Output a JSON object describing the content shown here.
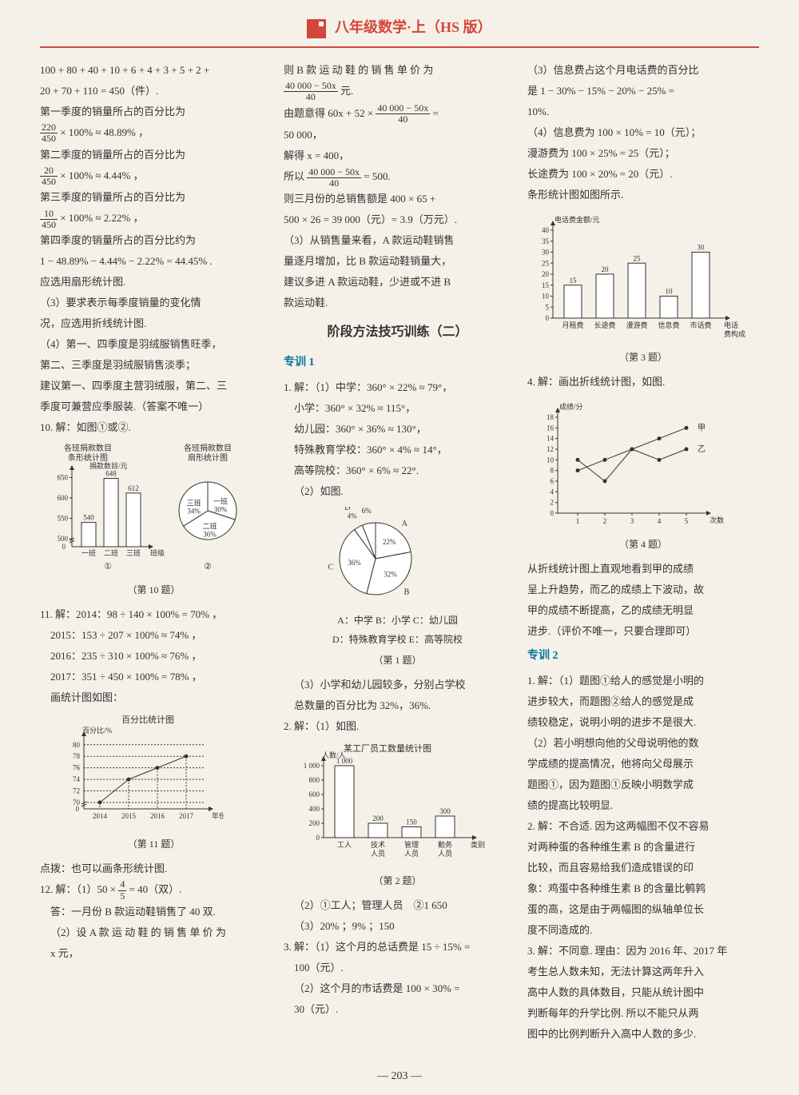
{
  "header": {
    "title": "八年级数学·上（HS 版）"
  },
  "page_number": "— 203 —",
  "col1": {
    "p1": "100 + 80 + 40 + 10 + 6 + 4 + 3 + 5 + 2 +",
    "p2": "20 + 70 + 110 = 450（件）.",
    "p3": "第一季度的销量所占的百分比为",
    "frac1": {
      "num": "220",
      "den": "450",
      "tail": " × 100% ≈ 48.89% ，"
    },
    "p4": "第二季度的销量所占的百分比为",
    "frac2": {
      "num": "20",
      "den": "450",
      "tail": " × 100% ≈ 4.44% ，"
    },
    "p5": "第三季度的销量所占的百分比为",
    "frac3": {
      "num": "10",
      "den": "450",
      "tail": " × 100% ≈ 2.22% ，"
    },
    "p6": "第四季度的销量所占的百分比约为",
    "p7": "1 − 48.89% − 4.44% − 2.22% = 44.45% .",
    "p8": "应选用扇形统计图.",
    "p9": "（3）要求表示每季度销量的变化情",
    "p10": "况，应选用折线统计图.",
    "p11": "（4）第一、四季度是羽绒服销售旺季，",
    "p12": "第二、三季度是羽绒服销售淡季；",
    "p13": "建议第一、四季度主营羽绒服，第二、三",
    "p14": "季度可兼营应季服装.（答案不唯一）",
    "q10": "10. 解：如图①或②.",
    "chart10_titles": {
      "left": "各班捐款数目\n条形统计图",
      "right": "各班捐款数目\n扇形统计图"
    },
    "bar10": {
      "type": "bar",
      "ylabel": "捐款数目/元",
      "categories": [
        "一班",
        "二班",
        "三班"
      ],
      "values": [
        540,
        648,
        612
      ],
      "value_labels": [
        "540",
        "648",
        "612"
      ],
      "yticks": [
        0,
        500,
        550,
        600,
        650
      ],
      "bar_color": "#ffffff",
      "border_color": "#333333",
      "xlabel": "班级",
      "sub": "①"
    },
    "pie10": {
      "type": "pie",
      "slices": [
        {
          "label": "一班",
          "pct": 30
        },
        {
          "label": "二班",
          "pct": 36
        },
        {
          "label": "三班",
          "pct": 34
        }
      ],
      "colors": [
        "#ffffff",
        "#ffffff",
        "#ffffff"
      ],
      "border": "#333333",
      "sub": "②"
    },
    "caption10": "（第 10 题）",
    "q11": "11. 解：2014：98 ÷ 140 × 100% = 70% ，",
    "q11b": "2015：153 ÷ 207 × 100% ≈ 74% ，",
    "q11c": "2016：235 ÷ 310 × 100% ≈ 76% ，",
    "q11d": "2017：351 ÷ 450 × 100% = 78% ，",
    "q11e": "画统计图如图：",
    "line11": {
      "type": "line",
      "title": "百分比统计图",
      "ylabel": "百分比/%",
      "xlabel": "年份",
      "x": [
        "2014",
        "2015",
        "2016",
        "2017"
      ],
      "y": [
        70,
        74,
        76,
        78
      ],
      "yticks": [
        0,
        70,
        72,
        74,
        76,
        78,
        80
      ],
      "line_color": "#333333",
      "marker": "circle"
    },
    "caption11": "（第 11 题）",
    "note11": "点拨：也可以画条形统计图.",
    "q12a": "12. 解：（1）50 × ",
    "q12frac": {
      "num": "4",
      "den": "5"
    },
    "q12a2": " = 40（双）.",
    "q12b": "答：一月份 B 款运动鞋销售了 40 双.",
    "q12c": "（2）设 A 款 运 动 鞋 的 销 售 单 价 为",
    "q12d": "x 元，"
  },
  "col2": {
    "p1": "则 B 款 运 动 鞋 的 销 售 单 价 为",
    "frac1": {
      "num": "40 000 − 50x",
      "den": "40",
      "tail": " 元."
    },
    "p2": "由题意得 60x + 52 × ",
    "frac2": {
      "num": "40 000 − 50x",
      "den": "40"
    },
    "p2b": " =",
    "p3": "50 000，",
    "p4": "解得 x = 400，",
    "p5": "所以 ",
    "frac3": {
      "num": "40 000 − 50x",
      "den": "40",
      "tail": " = 500."
    },
    "p6": "则三月份的总销售额是 400 × 65 +",
    "p7": "500 × 26 = 39 000（元）= 3.9（万元）.",
    "p8": "（3）从销售量来看，A 款运动鞋销售",
    "p9": "量逐月增加，比 B 款运动鞋销量大，",
    "p10": "建议多进 A 款运动鞋，少进或不进 B",
    "p11": "款运动鞋.",
    "section": "阶段方法技巧训练（二）",
    "zx1": "专训 1",
    "q1a": "1. 解：（1）中学：360° × 22% ≈ 79°，",
    "q1b": "小学：360° × 32% ≈ 115°，",
    "q1c": "幼儿园：360° × 36% ≈ 130°，",
    "q1d": "特殊教育学校：360° × 4% ≈ 14°，",
    "q1e": "高等院校：360° × 6% ≈ 22°.",
    "q1f": "（2）如图.",
    "pie1": {
      "type": "pie",
      "slices": [
        {
          "label": "A",
          "pct": 22
        },
        {
          "label": "B",
          "pct": 32
        },
        {
          "label": "C",
          "pct": 36
        },
        {
          "label": "D",
          "pct": 4
        },
        {
          "label": "E",
          "pct": 6
        }
      ],
      "annot": [
        "22%",
        "32%",
        "36%",
        "4%",
        "6%"
      ],
      "legend": "A：中学  B：小学  C：幼儿园",
      "legend2": "D：特殊教育学校  E：高等院校",
      "border": "#333333"
    },
    "caption1": "（第 1 题）",
    "q1g": "（3）小学和幼儿园较多，分别占学校",
    "q1h": "总数量的百分比为 32%，36%.",
    "q2a": "2. 解：（1）如图.",
    "bar2": {
      "type": "bar",
      "title": "某工厂员工数量统计图",
      "ylabel": "人数/人",
      "categories": [
        "工人",
        "技术\n人员",
        "管理\n人员",
        "勤务\n人员"
      ],
      "xlabel_tail": "类别",
      "values": [
        1000,
        200,
        150,
        300
      ],
      "value_labels": [
        "1 000",
        "200",
        "150",
        "300"
      ],
      "yticks": [
        0,
        200,
        400,
        600,
        800,
        1000
      ],
      "ytick_labels": [
        "0",
        "200",
        "400",
        "600",
        "800",
        "1 000"
      ],
      "bar_color": "#ffffff",
      "border_color": "#333333"
    },
    "caption2": "（第 2 题）",
    "q2b": "（2）①工人；管理人员　②1 650",
    "q2c": "（3）20% ；9% ；150",
    "q3a": "3. 解：（1）这个月的总话费是 15 ÷ 15% =",
    "q3b": "100（元）.",
    "q3c": "（2）这个月的市话费是 100 × 30% =",
    "q3d": "30（元）."
  },
  "col3": {
    "p1": "（3）信息费占这个月电话费的百分比",
    "p2": "是 1 − 30% − 15% − 20% − 25% =",
    "p3": "10%.",
    "p4": "（4）信息费为 100 × 10% = 10（元）；",
    "p5": "漫游费为 100 × 25% = 25（元）；",
    "p6": "长途费为 100 × 20% = 20（元）.",
    "p7": "条形统计图如图所示.",
    "bar3": {
      "type": "bar",
      "ylabel": "电话费金额/元",
      "categories": [
        "月租费",
        "长途费",
        "漫游费",
        "信息费",
        "市话费"
      ],
      "xlabel_tail": "电话\n费构成",
      "values": [
        15,
        20,
        25,
        10,
        30
      ],
      "value_labels": [
        "15",
        "20",
        "25",
        "10",
        "30"
      ],
      "yticks": [
        0,
        5,
        10,
        15,
        20,
        25,
        30,
        35,
        40
      ],
      "bar_color": "#ffffff",
      "border_color": "#333333"
    },
    "caption3": "（第 3 题）",
    "q4a": "4. 解：画出折线统计图，如图.",
    "line4": {
      "type": "line",
      "ylabel": "成绩/分",
      "xlabel": "次数",
      "x": [
        1,
        2,
        3,
        4,
        5
      ],
      "series": [
        {
          "name": "甲",
          "y": [
            8,
            10,
            12,
            14,
            16
          ],
          "color": "#333333",
          "marker": "circle"
        },
        {
          "name": "乙",
          "y": [
            10,
            6,
            12,
            10,
            12
          ],
          "color": "#333333",
          "marker": "circle"
        }
      ],
      "yticks": [
        0,
        2,
        4,
        6,
        8,
        10,
        12,
        14,
        16,
        18
      ]
    },
    "caption4": "（第 4 题）",
    "p8": "从折线统计图上直观地看到甲的成绩",
    "p9": "呈上升趋势，而乙的成绩上下波动，故",
    "p10": "甲的成绩不断提高，乙的成绩无明显",
    "p11": "进步.（评价不唯一，只要合理即可）",
    "zx2": "专训 2",
    "z1a": "1. 解：（1）题图①给人的感觉是小明的",
    "z1b": "进步较大，而题图②给人的感觉是成",
    "z1c": "绩较稳定，说明小明的进步不是很大.",
    "z1d": "（2）若小明想向他的父母说明他的数",
    "z1e": "学成绩的提高情况，他将向父母展示",
    "z1f": "题图①，因为题图①反映小明数学成",
    "z1g": "绩的提高比较明显.",
    "z2a": "2. 解：不合适. 因为这两幅图不仅不容易",
    "z2b": "对两种蛋的各种维生素 B 的含量进行",
    "z2c": "比较，而且容易给我们造成错误的印",
    "z2d": "象：鸡蛋中各种维生素 B 的含量比鹌鹑",
    "z2e": "蛋的高，这是由于两幅图的纵轴单位长",
    "z2f": "度不同造成的.",
    "z3a": "3. 解：不同意. 理由：因为 2016 年、2017 年",
    "z3b": "考生总人数未知，无法计算这两年升入",
    "z3c": "高中人数的具体数目，只能从统计图中",
    "z3d": "判断每年的升学比例. 所以不能只从两",
    "z3e": "图中的比例判断升入高中人数的多少."
  }
}
